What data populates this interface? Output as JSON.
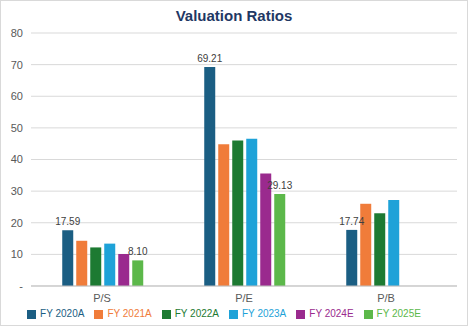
{
  "chart_data": {
    "type": "bar",
    "title": "Valuation Ratios",
    "categories": [
      "P/S",
      "P/E",
      "P/B"
    ],
    "ylim": [
      0,
      80
    ],
    "yticks": [
      {
        "value": 0,
        "label": "-"
      },
      10,
      20,
      30,
      40,
      50,
      60,
      70,
      80
    ],
    "grid": true,
    "legend": "bottom",
    "series": [
      {
        "name": "FY 2020A",
        "color": "#1b5e83",
        "values": [
          17.59,
          69.21,
          17.74
        ],
        "data_labels": true
      },
      {
        "name": "FY 2021A",
        "color": "#f07c3a",
        "values": [
          14.3,
          44.8,
          26.0
        ]
      },
      {
        "name": "FY 2022A",
        "color": "#1d7a32",
        "values": [
          12.2,
          46.0,
          23.0
        ]
      },
      {
        "name": "FY 2023A",
        "color": "#1ea2d8",
        "values": [
          13.4,
          46.6,
          27.2
        ]
      },
      {
        "name": "FY 2024E",
        "color": "#9a2a8e",
        "values": [
          10.1,
          35.6,
          null
        ]
      },
      {
        "name": "FY 2025E",
        "color": "#5cb84a",
        "values": [
          8.1,
          29.13,
          0
        ],
        "data_labels": true,
        "value_labels": [
          "8.10",
          "29.13",
          "-"
        ]
      }
    ]
  }
}
